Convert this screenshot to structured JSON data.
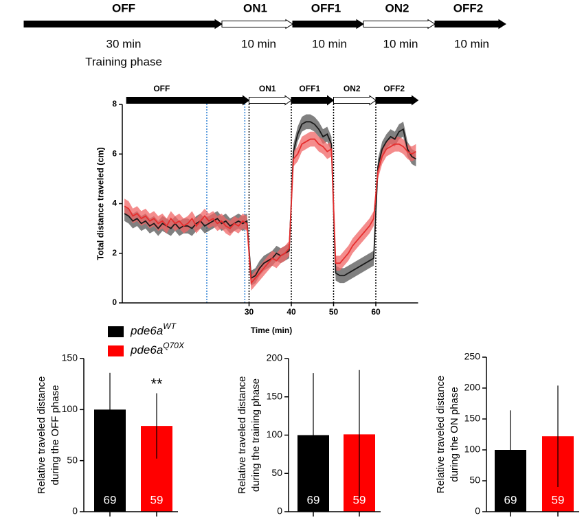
{
  "timeline": {
    "phases": [
      {
        "label": "OFF",
        "duration": "30 min",
        "note": "Training phase",
        "fill": "#000000"
      },
      {
        "label": "ON1",
        "duration": "10 min",
        "fill": "#ffffff"
      },
      {
        "label": "OFF1",
        "duration": "10 min",
        "fill": "#000000"
      },
      {
        "label": "ON2",
        "duration": "10 min",
        "fill": "#ffffff"
      },
      {
        "label": "OFF2",
        "duration": "10 min",
        "fill": "#000000"
      }
    ]
  },
  "chart_data": [
    {
      "type": "line",
      "ylabel": "Total distance traveled (cm)",
      "xlabel": "Time (min)",
      "xlim": [
        0,
        70
      ],
      "xticks": [
        30,
        40,
        50,
        60
      ],
      "ylim": [
        0,
        8
      ],
      "yticks": [
        0,
        2,
        4,
        6,
        8
      ],
      "phases": [
        {
          "label": "OFF",
          "start": 1,
          "end": 30,
          "fill": "#000000"
        },
        {
          "label": "ON1",
          "start": 30,
          "end": 40,
          "fill": "#ffffff"
        },
        {
          "label": "OFF1",
          "start": 40,
          "end": 50,
          "fill": "#000000"
        },
        {
          "label": "ON2",
          "start": 50,
          "end": 60,
          "fill": "#ffffff"
        },
        {
          "label": "OFF2",
          "start": 60,
          "end": 70,
          "fill": "#000000"
        }
      ],
      "markers": [
        {
          "x": 20,
          "color": "#2a7fd4"
        },
        {
          "x": 29,
          "color": "#2a7fd4"
        },
        {
          "x": 30,
          "color": "#000000"
        },
        {
          "x": 40,
          "color": "#000000"
        },
        {
          "x": 50,
          "color": "#000000"
        },
        {
          "x": 60,
          "color": "#000000"
        }
      ],
      "x": [
        0.5,
        1.5,
        2.5,
        3.5,
        4.5,
        5.5,
        6.5,
        7.5,
        8.5,
        9.5,
        10.5,
        11.5,
        12.5,
        13.5,
        14.5,
        15.5,
        16.5,
        17.5,
        18.5,
        19.5,
        20.5,
        21.5,
        22.5,
        23.5,
        24.5,
        25.5,
        26.5,
        27.5,
        28.5,
        29.5,
        30.5,
        31.5,
        32.5,
        33.5,
        34.5,
        35.5,
        36.5,
        37.5,
        38.5,
        39.5,
        40.5,
        41.5,
        42.5,
        43.5,
        44.5,
        45.5,
        46.5,
        47.5,
        48.5,
        49.5,
        50.5,
        51.5,
        52.5,
        53.5,
        54.5,
        55.5,
        56.5,
        57.5,
        58.5,
        59.5,
        60.5,
        61.5,
        62.5,
        63.5,
        64.5,
        65.5,
        66.5,
        67.5,
        68.5,
        69.5
      ],
      "series": [
        {
          "name": "pde6a",
          "sup": "WT",
          "color": "#1a1a1a",
          "band_color": "#555555",
          "legend_color": "#000000",
          "error": 0.3,
          "values": [
            3.6,
            3.5,
            3.3,
            3.4,
            3.2,
            3.3,
            3.1,
            3.2,
            3.0,
            3.2,
            3.1,
            3.0,
            3.2,
            3.0,
            3.1,
            3.1,
            3.0,
            3.2,
            3.3,
            3.1,
            3.2,
            3.3,
            3.4,
            3.2,
            3.3,
            3.1,
            3.2,
            3.3,
            3.2,
            3.3,
            1.0,
            1.1,
            1.4,
            1.6,
            1.7,
            1.8,
            2.0,
            1.9,
            2.0,
            2.1,
            6.1,
            6.8,
            7.2,
            7.3,
            7.3,
            7.2,
            7.0,
            6.7,
            6.8,
            6.4,
            1.2,
            1.1,
            1.1,
            1.2,
            1.3,
            1.4,
            1.5,
            1.6,
            1.7,
            1.8,
            5.5,
            6.2,
            6.5,
            6.7,
            6.6,
            6.9,
            7.0,
            6.2,
            5.9,
            5.8
          ]
        },
        {
          "name": "pde6a",
          "sup": "Q70X",
          "color": "#e62e2e",
          "band_color": "#f06666",
          "legend_color": "#ff0000",
          "error": 0.3,
          "values": [
            3.9,
            3.8,
            3.5,
            3.6,
            3.4,
            3.5,
            3.3,
            3.4,
            3.2,
            3.3,
            3.1,
            3.4,
            3.2,
            3.3,
            3.1,
            3.2,
            3.4,
            3.1,
            3.3,
            3.5,
            3.3,
            3.4,
            3.2,
            3.3,
            3.1,
            3.0,
            3.2,
            3.1,
            3.3,
            3.2,
            0.8,
            1.0,
            1.2,
            1.4,
            1.6,
            1.8,
            1.7,
            1.9,
            2.0,
            2.2,
            5.8,
            6.0,
            6.4,
            6.5,
            6.6,
            6.6,
            6.4,
            6.3,
            6.1,
            6.2,
            1.6,
            1.6,
            1.8,
            2.0,
            2.3,
            2.5,
            2.7,
            2.9,
            3.1,
            3.4,
            5.3,
            5.9,
            6.2,
            6.3,
            6.4,
            6.4,
            6.3,
            6.1,
            6.0,
            6.1
          ]
        }
      ]
    },
    {
      "type": "bar",
      "ylabel": [
        "Relative traveled distance",
        "during the OFF phase"
      ],
      "ylim": [
        0,
        150
      ],
      "yticks": [
        0,
        50,
        100,
        150
      ],
      "values": [
        100,
        84
      ],
      "errors": [
        36,
        32
      ],
      "colors": [
        "#000000",
        "#ff0000"
      ],
      "counts": [
        69,
        59
      ],
      "annotations": [
        {
          "text": "**",
          "index": 1
        }
      ]
    },
    {
      "type": "bar",
      "ylabel": [
        "Relative traveled distance",
        "during the training phase"
      ],
      "ylim": [
        0,
        200
      ],
      "yticks": [
        0,
        50,
        100,
        150,
        200
      ],
      "values": [
        100,
        101
      ],
      "errors": [
        81,
        84
      ],
      "colors": [
        "#000000",
        "#ff0000"
      ],
      "counts": [
        69,
        59
      ]
    },
    {
      "type": "bar",
      "ylabel": [
        "Relative traveled distance",
        "during the ON phase"
      ],
      "ylim": [
        0,
        250
      ],
      "yticks": [
        0,
        50,
        100,
        150,
        200,
        250
      ],
      "values": [
        100,
        122
      ],
      "errors": [
        64,
        82
      ],
      "colors": [
        "#000000",
        "#ff0000"
      ],
      "counts": [
        69,
        59
      ]
    }
  ]
}
